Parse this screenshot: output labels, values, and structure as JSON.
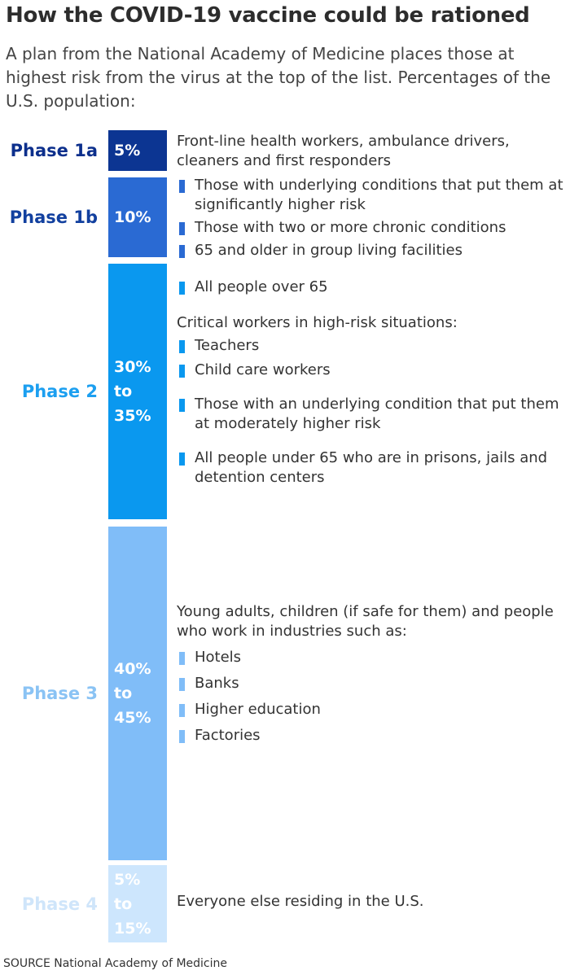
{
  "header": {
    "title": "How the COVID-19 vaccine could be rationed",
    "subtitle": "A plan from the National Academy of Medicine places those at highest risk from the virus at the top of the list. Percentages of the U.S. population:"
  },
  "phases": [
    {
      "label": "Phase 1a",
      "share": [
        "5%"
      ],
      "color": "#0c3592",
      "label_color": "#0c2f8c",
      "blocks": [
        {
          "text": "Front-line health workers, ambulance drivers, cleaners and first responders"
        }
      ]
    },
    {
      "label": "Phase 1b",
      "share": [
        "10%"
      ],
      "color": "#2a6ad3",
      "label_color": "#12409f",
      "blocks": [
        {
          "bullet": "Those with underlying conditions that put them at significantly higher risk"
        },
        {
          "bullet": "Those with two or more chronic conditions"
        },
        {
          "bullet": "65 and older in group living facilities"
        }
      ]
    },
    {
      "label": "Phase 2",
      "share": [
        "30%",
        "to",
        "35%"
      ],
      "color": "#0a98ef",
      "label_color": "#1c9ff0",
      "blocks": [
        {
          "bullet": "All people over 65"
        },
        {
          "text": "Critical workers in high-risk situations:"
        },
        {
          "bullet": "Teachers"
        },
        {
          "bullet": "Child care workers"
        },
        {
          "bullet": "Those with an underlying condition that put them at moderately higher risk"
        },
        {
          "bullet": "All people under 65 who are in prisons, jails and detention centers"
        }
      ]
    },
    {
      "label": "Phase 3",
      "share": [
        "40%",
        "to",
        "45%"
      ],
      "color": "#80bdf8",
      "label_color": "#8ac3f4",
      "blocks": [
        {
          "text": "Young adults, children (if safe for them) and people who work in industries such as:"
        },
        {
          "bullet": "Hotels"
        },
        {
          "bullet": "Banks"
        },
        {
          "bullet": "Higher education"
        },
        {
          "bullet": "Factories"
        }
      ]
    },
    {
      "label": "Phase 4",
      "share": [
        "5%",
        "to",
        "15%"
      ],
      "color": "#cde6fd",
      "label_color": "#cfe5fa",
      "blocks": [
        {
          "text": "Everyone else residing in the U.S."
        }
      ]
    }
  ],
  "source": "SOURCE National Academy of Medicine"
}
